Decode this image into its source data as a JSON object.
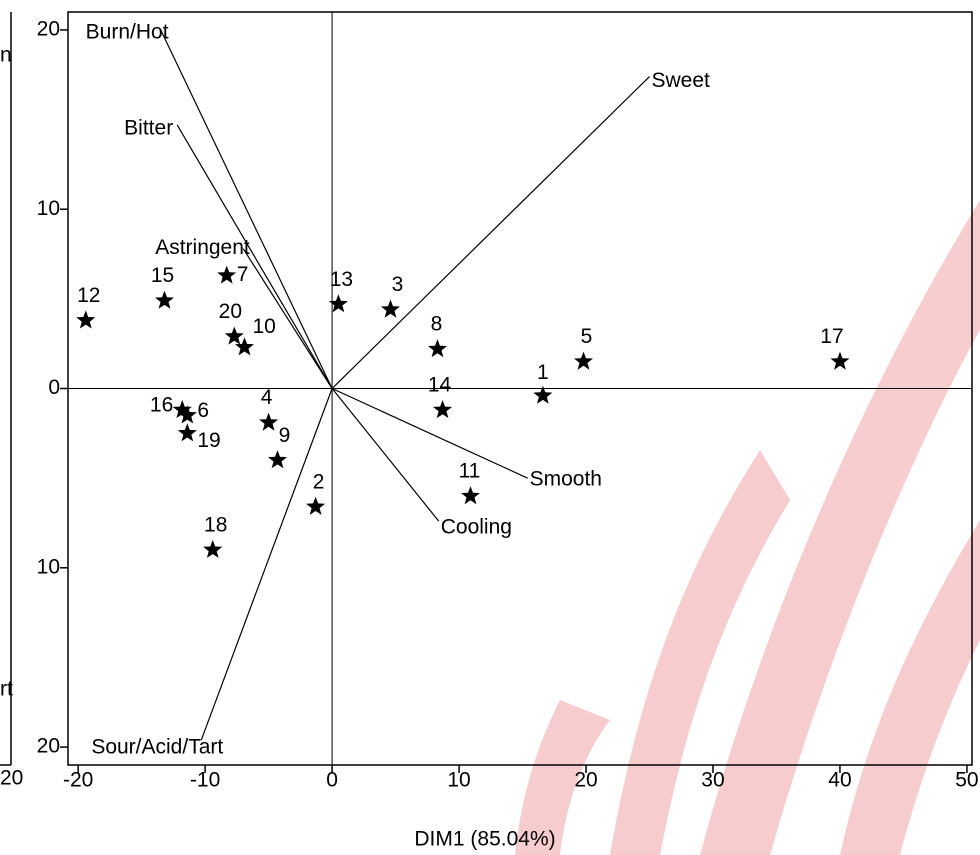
{
  "chart_data": {
    "type": "scatter",
    "x_label": "DIM1 (85.04%)",
    "xlim": [
      -20.8,
      50.4
    ],
    "ylim": [
      -21,
      21
    ],
    "xticks": [
      -20,
      -10,
      0,
      10,
      20,
      30,
      40,
      50
    ],
    "yticks": [
      20,
      10,
      0,
      {
        "value": -10,
        "label": "10"
      },
      {
        "value": -20,
        "label": "20"
      }
    ],
    "color": "#000000",
    "points": {
      "labels": [
        "1",
        "2",
        "3",
        "4",
        "5",
        "6",
        "7",
        "8",
        "9",
        "10",
        "11",
        "12",
        "13",
        "14",
        "15",
        "16",
        "17",
        "18",
        "19",
        "20"
      ],
      "x": [
        16.6,
        -1.3,
        4.6,
        -5.0,
        19.8,
        -11.4,
        -8.3,
        8.3,
        -4.3,
        -6.9,
        10.9,
        -19.4,
        0.5,
        8.7,
        -13.2,
        -11.8,
        40.0,
        -9.4,
        -11.4,
        -7.7
      ],
      "y": [
        -0.4,
        -6.6,
        4.4,
        -1.9,
        1.5,
        -1.5,
        6.3,
        2.2,
        -4.0,
        2.3,
        -6.0,
        3.8,
        4.7,
        -1.2,
        4.9,
        -1.2,
        1.5,
        -9.0,
        -2.5,
        2.9
      ]
    },
    "vectors": [
      {
        "name": "Burn/Hot",
        "x": -13.5,
        "y": 20.0
      },
      {
        "name": "Bitter",
        "x": -12.2,
        "y": 14.7
      },
      {
        "name": "Astringent",
        "x": -7.0,
        "y": 7.8
      },
      {
        "name": "Sweet",
        "x": 25.0,
        "y": 17.4
      },
      {
        "name": "Smooth",
        "x": 15.4,
        "y": -5.0
      },
      {
        "name": "Cooling",
        "x": 8.4,
        "y": -7.4
      },
      {
        "name": "Sour/Acid/Tart",
        "x": -10.3,
        "y": -19.6
      }
    ],
    "left_panel_fragments": [
      "n",
      "rt",
      "20"
    ]
  }
}
